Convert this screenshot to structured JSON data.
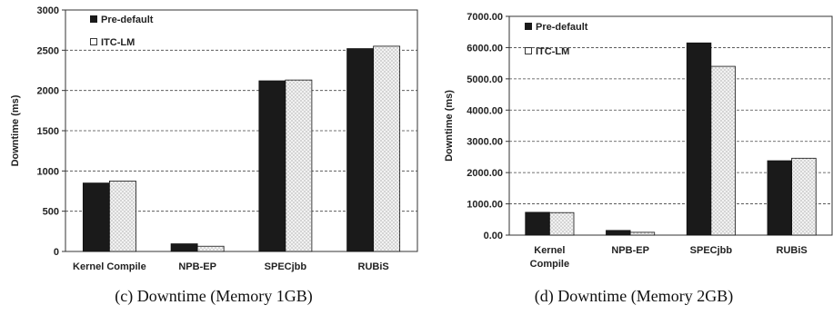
{
  "chart_data": [
    {
      "type": "bar",
      "caption": "(c) Downtime (Memory 1GB)",
      "ylabel": "Downtime (ms)",
      "categories": [
        [
          "Kernel Compile"
        ],
        [
          "NPB-EP"
        ],
        [
          "SPECjbb"
        ],
        [
          "RUBiS"
        ]
      ],
      "series": [
        {
          "name": "Pre-default",
          "values": [
            850,
            95,
            2120,
            2520
          ]
        },
        {
          "name": "ITC-LM",
          "values": [
            875,
            65,
            2130,
            2550
          ]
        }
      ],
      "ylim": [
        0,
        3000
      ],
      "yticks": [
        0,
        500,
        1000,
        1500,
        2000,
        2500,
        3000
      ],
      "ytick_labels": [
        "0",
        "500",
        "1000",
        "1500",
        "2000",
        "2500",
        "3000"
      ],
      "grid": true,
      "legend_position": "top-left"
    },
    {
      "type": "bar",
      "caption": "(d) Downtime (Memory 2GB)",
      "ylabel": "Downtime (ms)",
      "categories": [
        [
          "Kernel",
          "Compile"
        ],
        [
          "NPB-EP"
        ],
        [
          "SPECjbb"
        ],
        [
          "RUBiS"
        ]
      ],
      "series": [
        {
          "name": "Pre-default",
          "values": [
            730,
            150,
            6150,
            2380
          ]
        },
        {
          "name": "ITC-LM",
          "values": [
            720,
            90,
            5400,
            2460
          ]
        }
      ],
      "ylim": [
        0,
        7000
      ],
      "yticks": [
        0,
        1000,
        2000,
        3000,
        4000,
        5000,
        6000,
        7000
      ],
      "ytick_labels": [
        "0.00",
        "1000.00",
        "2000.00",
        "3000.00",
        "4000.00",
        "5000.00",
        "6000.00",
        "7000.00"
      ],
      "grid": true,
      "legend_position": "top-left"
    }
  ],
  "colors": {
    "pre_default": "#1a1a1a",
    "itc_lm_fill": "#f2f2f2",
    "itc_lm_dots": "#8a8a8a",
    "gridline": "#444444",
    "axis": "#333333"
  }
}
